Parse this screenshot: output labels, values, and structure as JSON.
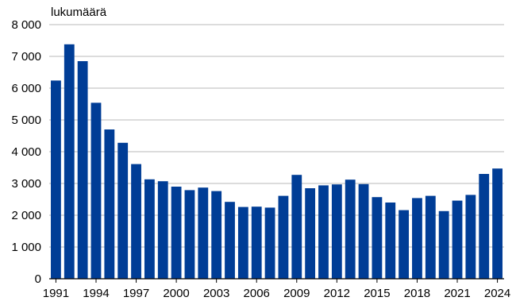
{
  "chart_data": {
    "type": "bar",
    "ylabel": "lukumäärä",
    "ylim": [
      0,
      8000
    ],
    "yticks": [
      0,
      1000,
      2000,
      3000,
      4000,
      5000,
      6000,
      7000,
      8000
    ],
    "ytick_labels": [
      "0",
      "1 000",
      "2 000",
      "3 000",
      "4 000",
      "5 000",
      "6 000",
      "7 000",
      "8 000"
    ],
    "categories": [
      "1991",
      "1992",
      "1993",
      "1994",
      "1995",
      "1996",
      "1997",
      "1998",
      "1999",
      "2000",
      "2001",
      "2002",
      "2003",
      "2004",
      "2005",
      "2006",
      "2007",
      "2008",
      "2009",
      "2010",
      "2011",
      "2012",
      "2013",
      "2014",
      "2015",
      "2016",
      "2017",
      "2018",
      "2019",
      "2020",
      "2021",
      "2022",
      "2023",
      "2024"
    ],
    "xtick_labels": [
      "1991",
      "1994",
      "1997",
      "2000",
      "2003",
      "2006",
      "2009",
      "2012",
      "2015",
      "2018",
      "2021",
      "2024"
    ],
    "values": [
      6240,
      7380,
      6850,
      5540,
      4700,
      4280,
      3610,
      3130,
      3070,
      2900,
      2790,
      2870,
      2760,
      2420,
      2260,
      2270,
      2240,
      2610,
      3270,
      2850,
      2940,
      2970,
      3120,
      2980,
      2570,
      2400,
      2160,
      2540,
      2610,
      2130,
      2460,
      2640,
      3300,
      3470
    ],
    "bar_color": "#003d96",
    "grid": true
  }
}
